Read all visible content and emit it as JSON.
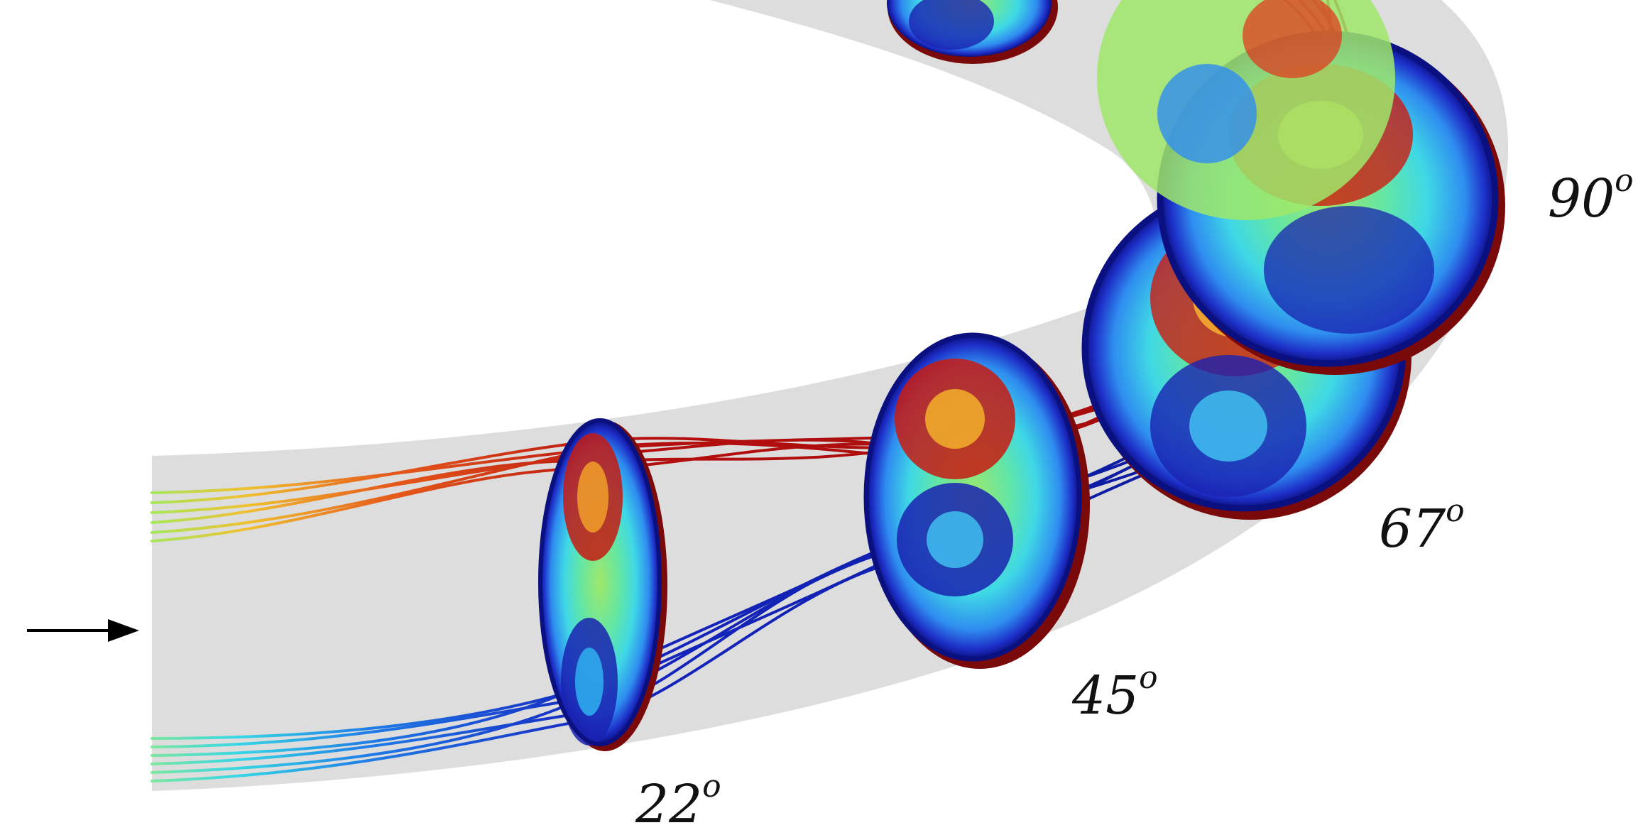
{
  "labels": [
    {
      "id": "22",
      "value": "22",
      "unit": "o"
    },
    {
      "id": "45",
      "value": "45",
      "unit": "o"
    },
    {
      "id": "67",
      "value": "67",
      "unit": "o"
    },
    {
      "id": "90",
      "value": "90",
      "unit": "o"
    }
  ],
  "colors": {
    "pipe": "#dddddd",
    "positive_vortex": "#a00b0b",
    "negative_vortex": "#0b1a9a",
    "arrow": "#000000"
  },
  "colormap": "jet"
}
